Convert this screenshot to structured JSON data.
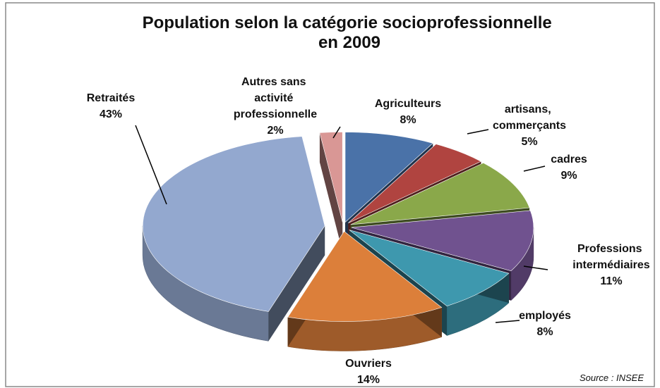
{
  "chart_data": {
    "type": "pie",
    "title": "Population selon la catégorie socioprofessionnelle en 2009",
    "categories": [
      "Agriculteurs",
      "artisans, commerçants",
      "cadres",
      "Professions intermédiaires",
      "employés",
      "Ouvriers",
      "Retraités",
      "Autres sans activité professionnelle"
    ],
    "values": [
      8,
      5,
      9,
      11,
      8,
      14,
      43,
      2
    ],
    "value_labels": [
      "8%",
      "5%",
      "9%",
      "11%",
      "8%",
      "14%",
      "43%",
      "2%"
    ],
    "colors": [
      "#4a72a8",
      "#b04440",
      "#8aa84a",
      "#70528f",
      "#3e98ae",
      "#dc7f3a",
      "#93a8cf",
      "#d99795"
    ],
    "source": "Source : INSEE"
  }
}
